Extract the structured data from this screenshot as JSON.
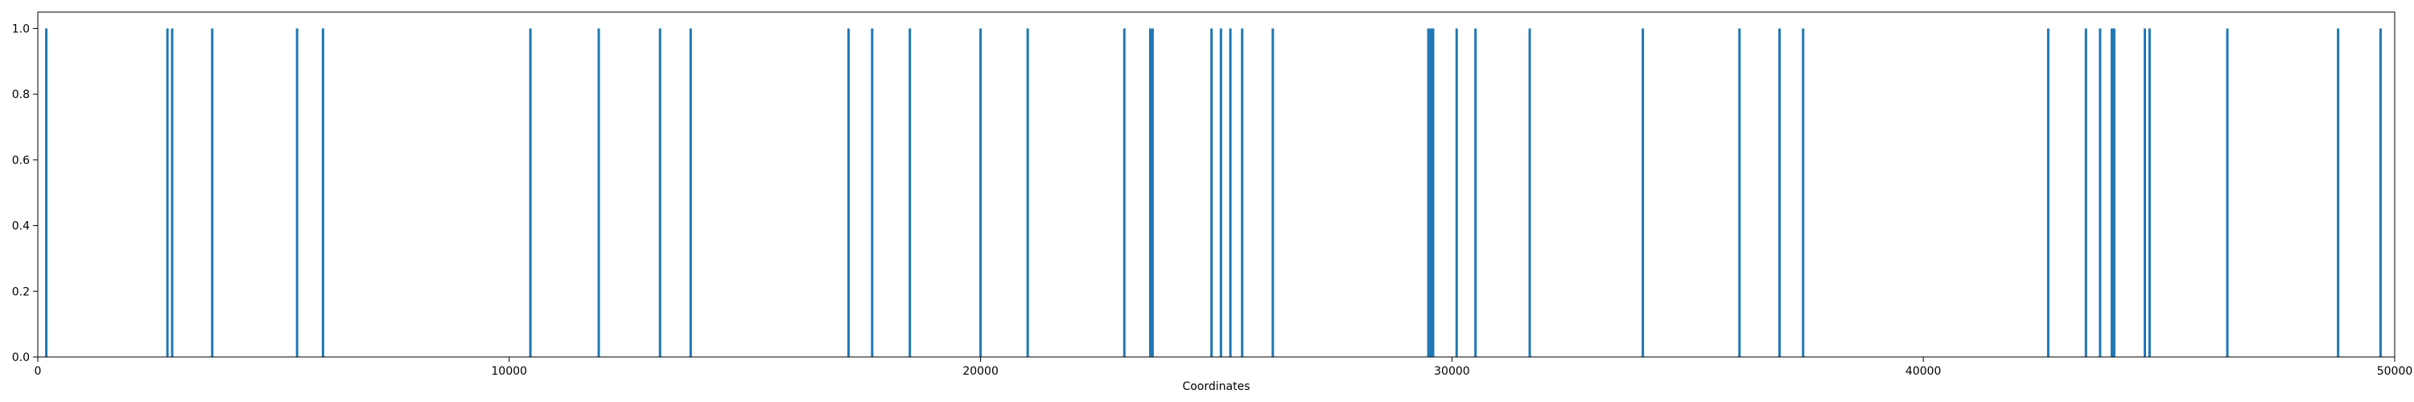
{
  "chart_data": {
    "type": "bar",
    "title": "",
    "xlabel": "Coordinates",
    "ylabel": "",
    "xlim": [
      0,
      50000
    ],
    "ylim": [
      0,
      1.05
    ],
    "grid": false,
    "bar_color": "#1f77b4",
    "xticks": [
      0,
      10000,
      20000,
      30000,
      40000,
      50000
    ],
    "xtick_labels": [
      "0",
      "10000",
      "20000",
      "30000",
      "40000",
      "50000"
    ],
    "yticks": [
      0.0,
      0.2,
      0.4,
      0.6,
      0.8,
      1.0
    ],
    "ytick_labels": [
      "0.0",
      "0.2",
      "0.4",
      "0.6",
      "0.8",
      "1.0"
    ],
    "series": [
      {
        "x": [
          180,
          2750,
          2850,
          3700,
          5500,
          6050,
          10450,
          11900,
          13200,
          13850,
          17200,
          17700,
          18500,
          20000,
          21000,
          23050,
          23600,
          23650,
          24900,
          25100,
          25300,
          25550,
          26200,
          29500,
          29550,
          29600,
          30100,
          30500,
          31650,
          34050,
          36100,
          36950,
          37450,
          42650,
          43450,
          43750,
          44000,
          44050,
          44700,
          44800,
          46450,
          48800,
          49700
        ],
        "values": [
          1,
          1,
          1,
          1,
          1,
          1,
          1,
          1,
          1,
          1,
          1,
          1,
          1,
          1,
          1,
          1,
          1,
          1,
          1,
          1,
          1,
          1,
          1,
          1,
          1,
          1,
          1,
          1,
          1,
          1,
          1,
          1,
          1,
          1,
          1,
          1,
          1,
          1,
          1,
          1,
          1,
          1,
          1
        ]
      }
    ]
  }
}
